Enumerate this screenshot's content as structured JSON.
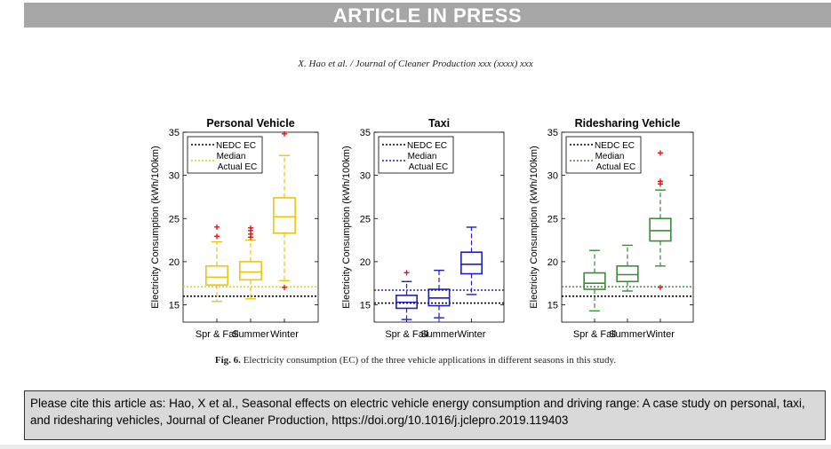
{
  "banner": {
    "text": "ARTICLE IN PRESS"
  },
  "header": {
    "text": "X. Hao et al. / Journal of Cleaner Production xxx (xxxx) xxx"
  },
  "figure": {
    "caption_label": "Fig. 6.",
    "caption_text": "Electricity consumption (EC) of the three vehicle applications in different seasons in this study."
  },
  "citation": {
    "text": "Please cite this article as: Hao, X et al., Seasonal effects on electric vehicle energy consumption and driving range: A case study on personal, taxi, and ridesharing vehicles, Journal of Cleaner Production, https://doi.org/10.1016/j.jclepro.2019.119403"
  },
  "colors": {
    "personal": "#ecc50f",
    "taxi": "#1f1fbf",
    "ridesharing": "#3a8c3a",
    "outlier": "#e81010",
    "nedc": "#000000",
    "banner": "#a6a6a6"
  },
  "chart_data": [
    {
      "type": "box",
      "title": "Personal Vehicle",
      "ylabel": "Electricity Consumption (kWh/100km)",
      "ylim": [
        13,
        35
      ],
      "yticks": [
        15,
        20,
        25,
        30,
        35
      ],
      "categories": [
        "Spr & Fall",
        "Summer",
        "Winter"
      ],
      "legend": [
        "NEDC EC",
        "Median",
        "Actual EC"
      ],
      "nedc": 16.0,
      "median_actual": 17.1,
      "boxes": [
        {
          "whisker_low": 15.4,
          "q1": 17.3,
          "median": 18.2,
          "q3": 19.5,
          "whisker_high": 22.3,
          "outliers": [
            22.9,
            24.0
          ]
        },
        {
          "whisker_low": 15.7,
          "q1": 17.9,
          "median": 18.8,
          "q3": 20.0,
          "whisker_high": 22.5,
          "outliers": [
            22.8,
            23.2,
            23.6,
            23.9
          ]
        },
        {
          "whisker_low": 17.8,
          "q1": 23.3,
          "median": 25.2,
          "q3": 27.4,
          "whisker_high": 32.3,
          "outliers": [
            17.0,
            34.8
          ]
        }
      ]
    },
    {
      "type": "box",
      "title": "Taxi",
      "ylabel": "Electricity Consumption (kWh/100km)",
      "ylim": [
        13,
        35
      ],
      "yticks": [
        15,
        20,
        25,
        30,
        35
      ],
      "categories": [
        "Spr & Fall",
        "Summer",
        "Winter"
      ],
      "legend": [
        "NEDC EC",
        "Median",
        "Actual EC"
      ],
      "nedc": 15.2,
      "median_actual": 16.7,
      "boxes": [
        {
          "whisker_low": 13.3,
          "q1": 14.6,
          "median": 15.3,
          "q3": 16.1,
          "whisker_high": 17.7,
          "outliers": [
            18.7
          ]
        },
        {
          "whisker_low": 13.5,
          "q1": 14.9,
          "median": 15.8,
          "q3": 16.8,
          "whisker_high": 19.0,
          "outliers": []
        },
        {
          "whisker_low": 16.2,
          "q1": 18.6,
          "median": 19.7,
          "q3": 21.1,
          "whisker_high": 24.0,
          "outliers": []
        }
      ]
    },
    {
      "type": "box",
      "title": "Ridesharing Vehicle",
      "ylabel": "Electricity Consumption (kWh/100km)",
      "ylim": [
        13,
        35
      ],
      "yticks": [
        15,
        20,
        25,
        30,
        35
      ],
      "categories": [
        "Spr & Fall",
        "Summer",
        "Winter"
      ],
      "legend": [
        "NEDC EC",
        "Median",
        "Actual EC"
      ],
      "nedc": 16.0,
      "median_actual": 17.1,
      "boxes": [
        {
          "whisker_low": 14.3,
          "q1": 16.8,
          "median": 17.5,
          "q3": 18.7,
          "whisker_high": 21.3,
          "outliers": []
        },
        {
          "whisker_low": 16.6,
          "q1": 17.7,
          "median": 18.5,
          "q3": 19.5,
          "whisker_high": 21.9,
          "outliers": []
        },
        {
          "whisker_low": 19.5,
          "q1": 22.4,
          "median": 23.6,
          "q3": 25.0,
          "whisker_high": 28.3,
          "outliers": [
            17.0,
            29.0,
            29.3,
            32.6
          ]
        }
      ]
    }
  ]
}
